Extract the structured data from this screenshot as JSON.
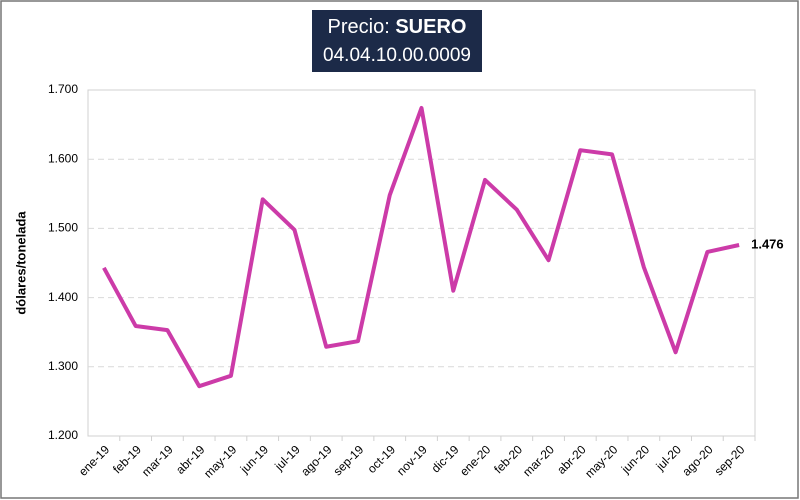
{
  "chart_data": {
    "type": "line",
    "title": "Precio:",
    "title_emphasis": "SUERO",
    "subtitle": "04.04.10.00.0009",
    "y_label": "dólares/tonelada",
    "categories": [
      "ene-19",
      "feb-19",
      "mar-19",
      "abr-19",
      "may-19",
      "jun-19",
      "jul-19",
      "ago-19",
      "sep-19",
      "oct-19",
      "nov-19",
      "dic-19",
      "ene-20",
      "feb-20",
      "mar-20",
      "abr-20",
      "may-20",
      "jun-20",
      "jul-20",
      "ago-20",
      "sep-20"
    ],
    "series": [
      {
        "name": "SUERO",
        "color": "#cc3ba8",
        "values": [
          1443,
          1359,
          1353,
          1272,
          1287,
          1542,
          1498,
          1329,
          1337,
          1548,
          1674,
          1410,
          1570,
          1527,
          1454,
          1613,
          1607,
          1444,
          1321,
          1466,
          1476
        ],
        "value_labels": [
          null,
          null,
          null,
          null,
          null,
          null,
          null,
          null,
          null,
          null,
          null,
          null,
          null,
          null,
          null,
          null,
          null,
          null,
          null,
          null,
          "1.476"
        ]
      }
    ],
    "ylim": [
      1200,
      1700
    ],
    "yticks": [
      {
        "value": 1200,
        "label": "1.200"
      },
      {
        "value": 1300,
        "label": "1.300"
      },
      {
        "value": 1400,
        "label": "1.400"
      },
      {
        "value": 1500,
        "label": "1.500"
      },
      {
        "value": 1600,
        "label": "1.600"
      },
      {
        "value": 1700,
        "label": "1.700"
      }
    ],
    "grid": true
  }
}
